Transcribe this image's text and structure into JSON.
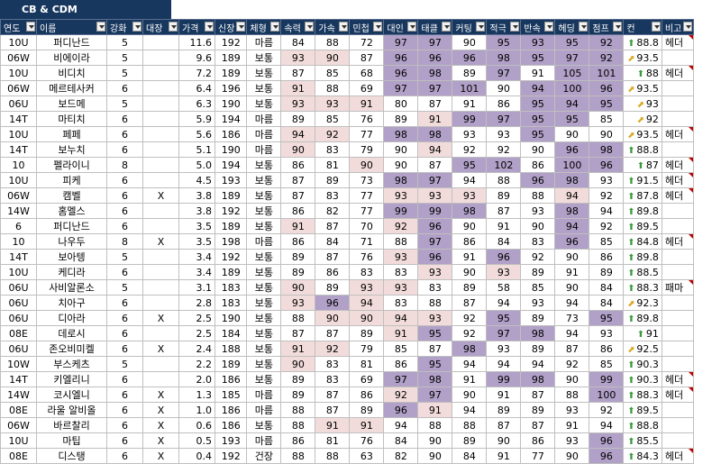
{
  "sheet_title": "CB & CDM",
  "columns": [
    "연도",
    "이름",
    "강화",
    "대장",
    "가격",
    "신장",
    "체형",
    "속력",
    "가속",
    "민첩",
    "대인",
    "태클",
    "커팅",
    "적극",
    "반속",
    "헤딩",
    "점프",
    "컨",
    "비고"
  ],
  "rows": [
    {
      "year": "10U",
      "name": "퍼디난드",
      "enh": "5",
      "cap": "",
      "price": "11.6",
      "height": "192",
      "body": "마름",
      "stats": [
        "84",
        "88",
        "72",
        "97",
        "97",
        "90",
        "95",
        "93",
        "95",
        "92"
      ],
      "trend": "up",
      "con": "88.8",
      "note": "헤더",
      "shade": [
        "",
        "",
        "",
        "p",
        "p",
        "",
        "p",
        "p",
        "p",
        "p"
      ]
    },
    {
      "year": "06W",
      "name": "비에이라",
      "enh": "5",
      "cap": "",
      "price": "9.6",
      "height": "189",
      "body": "보통",
      "stats": [
        "93",
        "90",
        "87",
        "96",
        "96",
        "96",
        "98",
        "95",
        "97",
        "92"
      ],
      "trend": "diag",
      "con": "93.5",
      "note": "",
      "shade": [
        "k",
        "k",
        "",
        "p",
        "p",
        "p",
        "p",
        "p",
        "p",
        "p"
      ]
    },
    {
      "year": "10U",
      "name": "비디치",
      "enh": "5",
      "cap": "",
      "price": "7.2",
      "height": "189",
      "body": "보통",
      "stats": [
        "87",
        "85",
        "68",
        "96",
        "98",
        "89",
        "97",
        "91",
        "105",
        "101"
      ],
      "trend": "up",
      "con": "88",
      "note": "헤더",
      "shade": [
        "",
        "",
        "",
        "p",
        "p",
        "",
        "p",
        "",
        "p",
        "p"
      ]
    },
    {
      "year": "06W",
      "name": "메르테사커",
      "enh": "6",
      "cap": "",
      "price": "6.4",
      "height": "196",
      "body": "보통",
      "stats": [
        "91",
        "88",
        "69",
        "97",
        "97",
        "101",
        "90",
        "94",
        "100",
        "96"
      ],
      "trend": "diag",
      "con": "93.5",
      "note": "",
      "shade": [
        "k",
        "",
        "",
        "p",
        "p",
        "p",
        "",
        "p",
        "p",
        "p"
      ]
    },
    {
      "year": "06U",
      "name": "보드메",
      "enh": "5",
      "cap": "",
      "price": "6.3",
      "height": "190",
      "body": "보통",
      "stats": [
        "93",
        "93",
        "91",
        "80",
        "87",
        "91",
        "86",
        "95",
        "94",
        "95"
      ],
      "trend": "diag",
      "con": "93",
      "note": "",
      "shade": [
        "k",
        "k",
        "k",
        "",
        "",
        "",
        "",
        "p",
        "p",
        "p"
      ]
    },
    {
      "year": "14T",
      "name": "마티치",
      "enh": "6",
      "cap": "",
      "price": "5.9",
      "height": "194",
      "body": "마름",
      "stats": [
        "89",
        "85",
        "76",
        "89",
        "91",
        "99",
        "97",
        "95",
        "95",
        "85"
      ],
      "trend": "diag",
      "con": "92",
      "note": "",
      "shade": [
        "",
        "",
        "",
        "",
        "k",
        "p",
        "p",
        "p",
        "p",
        ""
      ]
    },
    {
      "year": "10U",
      "name": "페페",
      "enh": "6",
      "cap": "",
      "price": "5.6",
      "height": "186",
      "body": "마름",
      "stats": [
        "94",
        "92",
        "77",
        "98",
        "98",
        "93",
        "93",
        "95",
        "90",
        "90"
      ],
      "trend": "diag",
      "con": "93.5",
      "note": "헤더",
      "shade": [
        "k",
        "k",
        "",
        "p",
        "p",
        "",
        "",
        "p",
        "",
        ""
      ]
    },
    {
      "year": "14T",
      "name": "보누치",
      "enh": "6",
      "cap": "",
      "price": "5.1",
      "height": "190",
      "body": "마름",
      "stats": [
        "90",
        "83",
        "79",
        "90",
        "94",
        "92",
        "92",
        "90",
        "96",
        "98"
      ],
      "trend": "up",
      "con": "88.8",
      "note": "",
      "shade": [
        "k",
        "",
        "",
        "",
        "k",
        "",
        "",
        "",
        "p",
        "p"
      ]
    },
    {
      "year": "10",
      "name": "펠라이니",
      "enh": "8",
      "cap": "",
      "price": "5.0",
      "height": "194",
      "body": "보통",
      "stats": [
        "86",
        "81",
        "90",
        "90",
        "87",
        "95",
        "102",
        "86",
        "100",
        "96"
      ],
      "trend": "up",
      "con": "87",
      "note": "헤더",
      "shade": [
        "",
        "",
        "k",
        "",
        "",
        "p",
        "p",
        "",
        "p",
        "p"
      ]
    },
    {
      "year": "10U",
      "name": "피케",
      "enh": "6",
      "cap": "",
      "price": "4.5",
      "height": "193",
      "body": "보통",
      "stats": [
        "87",
        "89",
        "73",
        "98",
        "97",
        "94",
        "88",
        "96",
        "98",
        "93"
      ],
      "trend": "up",
      "con": "91.5",
      "note": "헤더",
      "shade": [
        "",
        "",
        "",
        "p",
        "p",
        "",
        "",
        "p",
        "p",
        ""
      ]
    },
    {
      "year": "06W",
      "name": "캠벨",
      "enh": "6",
      "cap": "X",
      "price": "3.8",
      "height": "189",
      "body": "보통",
      "stats": [
        "87",
        "83",
        "77",
        "93",
        "93",
        "93",
        "89",
        "88",
        "94",
        "92"
      ],
      "trend": "up",
      "con": "87.8",
      "note": "헤더",
      "shade": [
        "",
        "",
        "",
        "k",
        "k",
        "k",
        "",
        "",
        "k",
        ""
      ]
    },
    {
      "year": "14W",
      "name": "홈멜스",
      "enh": "6",
      "cap": "",
      "price": "3.8",
      "height": "192",
      "body": "보통",
      "stats": [
        "86",
        "82",
        "77",
        "99",
        "99",
        "98",
        "87",
        "93",
        "98",
        "94"
      ],
      "trend": "up",
      "con": "89.8",
      "note": "",
      "shade": [
        "",
        "",
        "",
        "p",
        "p",
        "p",
        "",
        "",
        "p",
        ""
      ]
    },
    {
      "year": "6",
      "name": "퍼디난드",
      "enh": "6",
      "cap": "",
      "price": "3.5",
      "height": "189",
      "body": "보통",
      "stats": [
        "91",
        "87",
        "70",
        "92",
        "96",
        "90",
        "91",
        "90",
        "94",
        "92"
      ],
      "trend": "up",
      "con": "89.5",
      "note": "",
      "shade": [
        "k",
        "",
        "",
        "k",
        "p",
        "",
        "",
        "",
        "p",
        ""
      ]
    },
    {
      "year": "10",
      "name": "나우두",
      "enh": "8",
      "cap": "X",
      "price": "3.5",
      "height": "198",
      "body": "마름",
      "stats": [
        "86",
        "84",
        "71",
        "88",
        "97",
        "86",
        "84",
        "83",
        "96",
        "85"
      ],
      "trend": "up",
      "con": "84.8",
      "note": "헤더",
      "shade": [
        "",
        "",
        "",
        "",
        "p",
        "",
        "",
        "",
        "p",
        ""
      ]
    },
    {
      "year": "14T",
      "name": "보아텡",
      "enh": "5",
      "cap": "",
      "price": "3.4",
      "height": "192",
      "body": "보통",
      "stats": [
        "89",
        "87",
        "76",
        "93",
        "96",
        "91",
        "96",
        "92",
        "90",
        "86"
      ],
      "trend": "up",
      "con": "89.8",
      "note": "",
      "shade": [
        "",
        "",
        "",
        "k",
        "p",
        "",
        "p",
        "",
        "",
        ""
      ]
    },
    {
      "year": "10U",
      "name": "케디라",
      "enh": "6",
      "cap": "",
      "price": "3.4",
      "height": "189",
      "body": "보통",
      "stats": [
        "89",
        "86",
        "83",
        "83",
        "93",
        "90",
        "93",
        "89",
        "91",
        "89"
      ],
      "trend": "up",
      "con": "88.5",
      "note": "",
      "shade": [
        "",
        "",
        "",
        "",
        "k",
        "",
        "k",
        "",
        "",
        ""
      ]
    },
    {
      "year": "06U",
      "name": "사비알론소",
      "enh": "5",
      "cap": "",
      "price": "3.1",
      "height": "183",
      "body": "보통",
      "stats": [
        "90",
        "89",
        "93",
        "93",
        "83",
        "89",
        "58",
        "85",
        "90",
        "84"
      ],
      "trend": "up",
      "con": "88.3",
      "note": "패마",
      "shade": [
        "k",
        "",
        "k",
        "k",
        "",
        "",
        "",
        "",
        "",
        ""
      ]
    },
    {
      "year": "06U",
      "name": "치아구",
      "enh": "6",
      "cap": "",
      "price": "2.8",
      "height": "183",
      "body": "보통",
      "stats": [
        "93",
        "96",
        "94",
        "83",
        "88",
        "87",
        "94",
        "93",
        "94",
        "84"
      ],
      "trend": "diag",
      "con": "92.3",
      "note": "",
      "shade": [
        "k",
        "p",
        "k",
        "",
        "",
        "",
        "",
        "",
        "",
        ""
      ]
    },
    {
      "year": "06U",
      "name": "디아라",
      "enh": "6",
      "cap": "X",
      "price": "2.5",
      "height": "190",
      "body": "보통",
      "stats": [
        "88",
        "90",
        "90",
        "94",
        "93",
        "92",
        "95",
        "89",
        "73",
        "95"
      ],
      "trend": "up",
      "con": "89.8",
      "note": "",
      "shade": [
        "",
        "k",
        "k",
        "k",
        "k",
        "",
        "p",
        "",
        "",
        "p"
      ]
    },
    {
      "year": "08E",
      "name": "데로시",
      "enh": "6",
      "cap": "",
      "price": "2.5",
      "height": "184",
      "body": "보통",
      "stats": [
        "87",
        "87",
        "89",
        "91",
        "95",
        "92",
        "97",
        "98",
        "94",
        "93"
      ],
      "trend": "up",
      "con": "91",
      "note": "",
      "shade": [
        "",
        "",
        "",
        "k",
        "p",
        "",
        "p",
        "p",
        "",
        ""
      ]
    },
    {
      "year": "06U",
      "name": "존오비미켈",
      "enh": "6",
      "cap": "X",
      "price": "2.4",
      "height": "188",
      "body": "보통",
      "stats": [
        "91",
        "92",
        "79",
        "85",
        "87",
        "98",
        "93",
        "89",
        "87",
        "86"
      ],
      "trend": "diag",
      "con": "92.5",
      "note": "",
      "shade": [
        "k",
        "k",
        "",
        "",
        "",
        "p",
        "",
        "",
        "",
        ""
      ]
    },
    {
      "year": "10W",
      "name": "부스케츠",
      "enh": "5",
      "cap": "",
      "price": "2.2",
      "height": "189",
      "body": "보통",
      "stats": [
        "90",
        "83",
        "81",
        "86",
        "95",
        "94",
        "94",
        "94",
        "92",
        "85"
      ],
      "trend": "up",
      "con": "90.3",
      "note": "",
      "shade": [
        "k",
        "",
        "",
        "",
        "p",
        "",
        "",
        "",
        "",
        ""
      ]
    },
    {
      "year": "14T",
      "name": "키엘리니",
      "enh": "6",
      "cap": "",
      "price": "2.0",
      "height": "186",
      "body": "보통",
      "stats": [
        "89",
        "83",
        "69",
        "97",
        "98",
        "91",
        "99",
        "98",
        "90",
        "99"
      ],
      "trend": "up",
      "con": "90.3",
      "note": "헤더",
      "shade": [
        "",
        "",
        "",
        "p",
        "p",
        "",
        "p",
        "p",
        "",
        "p"
      ]
    },
    {
      "year": "14W",
      "name": "코시엘니",
      "enh": "6",
      "cap": "X",
      "price": "1.3",
      "height": "185",
      "body": "마름",
      "stats": [
        "89",
        "87",
        "86",
        "92",
        "97",
        "90",
        "91",
        "87",
        "88",
        "100"
      ],
      "trend": "up",
      "con": "88.3",
      "note": "헤더",
      "shade": [
        "",
        "",
        "",
        "k",
        "p",
        "",
        "",
        "",
        "",
        "p"
      ]
    },
    {
      "year": "08E",
      "name": "라울 알비올",
      "enh": "6",
      "cap": "X",
      "price": "1.0",
      "height": "186",
      "body": "마름",
      "stats": [
        "88",
        "87",
        "89",
        "96",
        "91",
        "94",
        "89",
        "89",
        "93",
        "92"
      ],
      "trend": "up",
      "con": "89.5",
      "note": "",
      "shade": [
        "",
        "",
        "",
        "p",
        "k",
        "",
        "",
        "",
        "",
        ""
      ]
    },
    {
      "year": "06W",
      "name": "바르찰리",
      "enh": "6",
      "cap": "X",
      "price": "0.6",
      "height": "186",
      "body": "보통",
      "stats": [
        "88",
        "91",
        "91",
        "94",
        "88",
        "88",
        "87",
        "87",
        "91",
        "94"
      ],
      "trend": "up",
      "con": "88.8",
      "note": "",
      "shade": [
        "",
        "k",
        "k",
        "",
        "",
        "",
        "",
        "",
        "",
        ""
      ]
    },
    {
      "year": "10U",
      "name": "마팁",
      "enh": "6",
      "cap": "X",
      "price": "0.5",
      "height": "193",
      "body": "마름",
      "stats": [
        "86",
        "81",
        "76",
        "84",
        "90",
        "89",
        "90",
        "86",
        "93",
        "96"
      ],
      "trend": "up",
      "con": "85.5",
      "note": "",
      "shade": [
        "",
        "",
        "",
        "",
        "",
        "",
        "",
        "",
        "",
        "p"
      ]
    },
    {
      "year": "08E",
      "name": "디스탱",
      "enh": "6",
      "cap": "X",
      "price": "0.4",
      "height": "192",
      "body": "건장",
      "stats": [
        "88",
        "88",
        "63",
        "82",
        "90",
        "84",
        "91",
        "77",
        "90",
        "96"
      ],
      "trend": "up",
      "con": "84.3",
      "note": "헤더",
      "shade": [
        "",
        "",
        "",
        "",
        "",
        "",
        "",
        "",
        "",
        "p"
      ]
    }
  ]
}
